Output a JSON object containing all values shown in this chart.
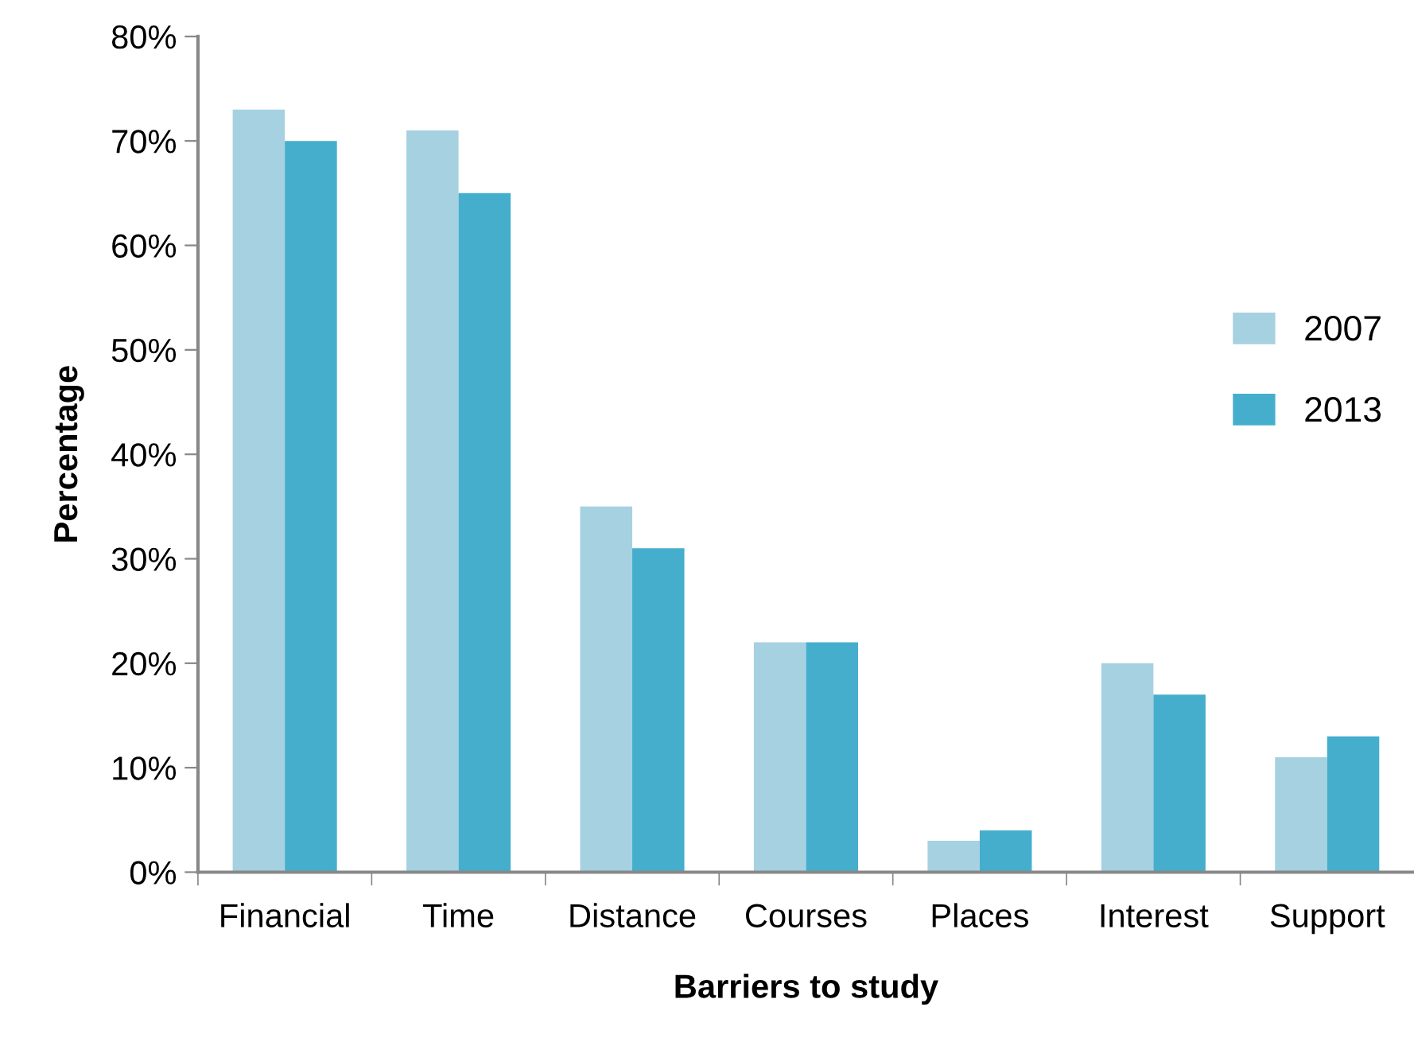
{
  "chart_data": {
    "type": "bar",
    "xlabel": "Barriers to study",
    "ylabel": "Percentage",
    "categories": [
      "Financial",
      "Time",
      "Distance",
      "Courses",
      "Places",
      "Interest",
      "Support"
    ],
    "series": [
      {
        "name": "2007",
        "color": "#a5d1e1",
        "values": [
          73,
          71,
          35,
          22,
          3,
          20,
          11
        ]
      },
      {
        "name": "2013",
        "color": "#45aecd",
        "values": [
          70,
          65,
          31,
          22,
          4,
          17,
          13
        ]
      }
    ],
    "ylim": [
      0,
      80
    ],
    "yticks": [
      {
        "value": 0,
        "label": "0%"
      },
      {
        "value": 10,
        "label": "10%"
      },
      {
        "value": 20,
        "label": "20%"
      },
      {
        "value": 30,
        "label": "30%"
      },
      {
        "value": 40,
        "label": "40%"
      },
      {
        "value": 50,
        "label": "50%"
      },
      {
        "value": 60,
        "label": "60%"
      },
      {
        "value": 70,
        "label": "70%"
      },
      {
        "value": 80,
        "label": "80%"
      }
    ],
    "grid": false,
    "legend": "right"
  }
}
